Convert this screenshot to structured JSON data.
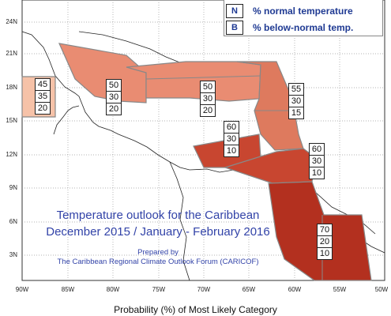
{
  "legend": {
    "items": [
      {
        "key": "N",
        "label": "% normal temperature"
      },
      {
        "key": "B",
        "label": "% below-normal temp."
      }
    ]
  },
  "axes": {
    "y_ticks": [
      "24N",
      "21N",
      "18N",
      "15N",
      "12N",
      "9N",
      "6N",
      "3N"
    ],
    "x_ticks": [
      "90W",
      "85W",
      "80W",
      "75W",
      "70W",
      "65W",
      "60W",
      "55W",
      "50W"
    ]
  },
  "zones": [
    {
      "id": "mexico-yucatan",
      "values": [
        "45",
        "35",
        "20"
      ],
      "color": "#f6c2a8"
    },
    {
      "id": "western-caribbean",
      "values": [
        "50",
        "30",
        "20"
      ],
      "color": "#e98c72"
    },
    {
      "id": "greater-antilles",
      "values": [
        "50",
        "30",
        "20"
      ],
      "color": "#e98c72"
    },
    {
      "id": "eastern-caribbean",
      "values": [
        "55",
        "30",
        "15"
      ],
      "color": "#de7a5e"
    },
    {
      "id": "central-caribbean-sea",
      "values": [
        "60",
        "30",
        "10"
      ],
      "color": "#c84630"
    },
    {
      "id": "southern-caribbean",
      "values": [
        "60",
        "30",
        "10"
      ],
      "color": "#c84630"
    },
    {
      "id": "guianas",
      "values": [
        "70",
        "20",
        "10"
      ],
      "color": "#b3301f"
    }
  ],
  "title": {
    "line1": "Temperature outlook for the Caribbean",
    "line2": "December 2015 / January - February 2016",
    "prepared": "Prepared by",
    "org": "The Caribbean Regional Climate Outlook Forum (CARICOF)"
  },
  "caption": "Probability (%) of Most Likely Category"
}
